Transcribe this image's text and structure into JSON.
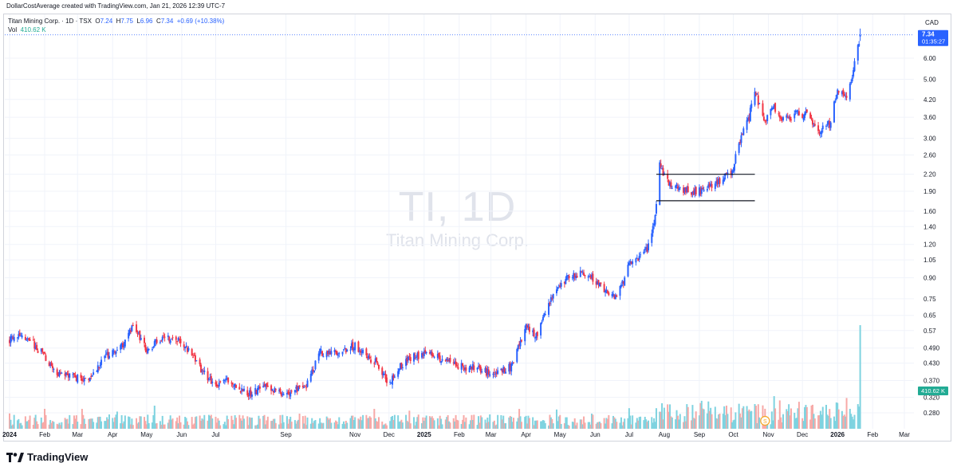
{
  "header": {
    "attribution": "DollarCostAverage created with TradingView.com, Jan 21, 2026 12:39 UTC-7"
  },
  "legend": {
    "symbol": "Titan Mining Corp. · 1D · TSX",
    "o_label": "O",
    "o_value": "7.24",
    "h_label": "H",
    "h_value": "7.75",
    "l_label": "L",
    "l_value": "6.96",
    "c_label": "C",
    "c_value": "7.34",
    "change": "+0.69 (+10.38%)",
    "vol_label": "Vol",
    "vol_value": "410.62 K"
  },
  "watermark": {
    "ticker": "TI, 1D",
    "name": "Titan Mining Corp."
  },
  "axis": {
    "currency": "CAD",
    "price_badge": "7.34",
    "countdown": "01:35:27",
    "volume_badge": "410.62 K",
    "event_marker": "S"
  },
  "branding": {
    "logo_text": "TradingView"
  },
  "colors": {
    "up": "#2962ff",
    "down": "#f23645",
    "vol_up": "#7fd3e0",
    "vol_down": "#f7a9a7",
    "grid": "#f0f3fa",
    "badge": "#2962ff",
    "vol_badge": "#22ab94",
    "event": "#f5a623"
  },
  "chart_data": {
    "type": "candlestick",
    "scale": "log",
    "ylim": [
      0.26,
      7.9
    ],
    "y_ticks": [
      "6.00",
      "5.00",
      "4.20",
      "3.60",
      "3.00",
      "2.60",
      "2.20",
      "1.90",
      "1.60",
      "1.40",
      "1.20",
      "1.05",
      "0.90",
      "0.75",
      "0.65",
      "0.57",
      "0.490",
      "0.430",
      "0.370",
      "0.320",
      "0.280"
    ],
    "x_ticks": [
      {
        "label": "2024",
        "bold": true,
        "date": "2024-01-01"
      },
      {
        "label": "Feb",
        "date": "2024-02-01"
      },
      {
        "label": "Mar",
        "date": "2024-03-01"
      },
      {
        "label": "Apr",
        "date": "2024-04-01"
      },
      {
        "label": "May",
        "date": "2024-05-01"
      },
      {
        "label": "Jun",
        "date": "2024-06-01"
      },
      {
        "label": "Jul",
        "date": "2024-07-01"
      },
      {
        "label": "Sep",
        "date": "2024-09-01"
      },
      {
        "label": "Nov",
        "date": "2024-11-01"
      },
      {
        "label": "Dec",
        "date": "2024-12-01"
      },
      {
        "label": "2025",
        "bold": true,
        "date": "2025-01-01"
      },
      {
        "label": "Feb",
        "date": "2025-02-01"
      },
      {
        "label": "Mar",
        "date": "2025-03-01"
      },
      {
        "label": "Apr",
        "date": "2025-04-01"
      },
      {
        "label": "May",
        "date": "2025-05-01"
      },
      {
        "label": "Jun",
        "date": "2025-06-01"
      },
      {
        "label": "Jul",
        "date": "2025-07-01"
      },
      {
        "label": "Aug",
        "date": "2025-08-01"
      },
      {
        "label": "Sep",
        "date": "2025-09-01"
      },
      {
        "label": "Oct",
        "date": "2025-10-01"
      },
      {
        "label": "Nov",
        "date": "2025-11-01"
      },
      {
        "label": "Dec",
        "date": "2025-12-01"
      },
      {
        "label": "2026",
        "bold": true,
        "date": "2026-01-01"
      },
      {
        "label": "Feb",
        "date": "2026-02-01"
      },
      {
        "label": "Mar",
        "date": "2026-03-01"
      }
    ],
    "close_path": [
      {
        "date": "2024-01-01",
        "close": 0.53
      },
      {
        "date": "2024-01-15",
        "close": 0.54
      },
      {
        "date": "2024-02-01",
        "close": 0.46
      },
      {
        "date": "2024-02-10",
        "close": 0.4
      },
      {
        "date": "2024-03-01",
        "close": 0.38
      },
      {
        "date": "2024-03-10",
        "close": 0.37
      },
      {
        "date": "2024-03-25",
        "close": 0.45
      },
      {
        "date": "2024-04-10",
        "close": 0.5
      },
      {
        "date": "2024-04-20",
        "close": 0.6
      },
      {
        "date": "2024-05-01",
        "close": 0.48
      },
      {
        "date": "2024-05-15",
        "close": 0.54
      },
      {
        "date": "2024-06-01",
        "close": 0.52
      },
      {
        "date": "2024-06-20",
        "close": 0.4
      },
      {
        "date": "2024-07-01",
        "close": 0.35
      },
      {
        "date": "2024-07-10",
        "close": 0.37
      },
      {
        "date": "2024-08-01",
        "close": 0.33
      },
      {
        "date": "2024-08-15",
        "close": 0.35
      },
      {
        "date": "2024-09-01",
        "close": 0.33
      },
      {
        "date": "2024-09-20",
        "close": 0.36
      },
      {
        "date": "2024-10-01",
        "close": 0.47
      },
      {
        "date": "2024-10-15",
        "close": 0.47
      },
      {
        "date": "2024-11-01",
        "close": 0.5
      },
      {
        "date": "2024-11-20",
        "close": 0.43
      },
      {
        "date": "2024-12-01",
        "close": 0.36
      },
      {
        "date": "2024-12-15",
        "close": 0.44
      },
      {
        "date": "2025-01-01",
        "close": 0.47
      },
      {
        "date": "2025-01-15",
        "close": 0.45
      },
      {
        "date": "2025-02-01",
        "close": 0.42
      },
      {
        "date": "2025-02-20",
        "close": 0.41
      },
      {
        "date": "2025-03-01",
        "close": 0.39
      },
      {
        "date": "2025-03-20",
        "close": 0.42
      },
      {
        "date": "2025-04-01",
        "close": 0.6
      },
      {
        "date": "2025-04-10",
        "close": 0.55
      },
      {
        "date": "2025-04-25",
        "close": 0.78
      },
      {
        "date": "2025-05-10",
        "close": 0.92
      },
      {
        "date": "2025-05-25",
        "close": 0.95
      },
      {
        "date": "2025-06-10",
        "close": 0.8
      },
      {
        "date": "2025-06-20",
        "close": 0.75
      },
      {
        "date": "2025-07-01",
        "close": 1.0
      },
      {
        "date": "2025-07-10",
        "close": 1.08
      },
      {
        "date": "2025-07-20",
        "close": 1.2
      },
      {
        "date": "2025-07-25",
        "close": 1.7
      },
      {
        "date": "2025-07-28",
        "close": 2.4
      },
      {
        "date": "2025-08-05",
        "close": 2.0
      },
      {
        "date": "2025-08-25",
        "close": 1.9
      },
      {
        "date": "2025-09-05",
        "close": 1.9
      },
      {
        "date": "2025-09-20",
        "close": 2.1
      },
      {
        "date": "2025-10-01",
        "close": 2.3
      },
      {
        "date": "2025-10-05",
        "close": 2.8
      },
      {
        "date": "2025-10-15",
        "close": 3.6
      },
      {
        "date": "2025-10-20",
        "close": 4.6
      },
      {
        "date": "2025-10-28",
        "close": 3.4
      },
      {
        "date": "2025-11-05",
        "close": 4.0
      },
      {
        "date": "2025-11-15",
        "close": 3.5
      },
      {
        "date": "2025-11-25",
        "close": 3.7
      },
      {
        "date": "2025-12-05",
        "close": 3.7
      },
      {
        "date": "2025-12-15",
        "close": 3.2
      },
      {
        "date": "2025-12-25",
        "close": 3.4
      },
      {
        "date": "2026-01-01",
        "close": 4.5
      },
      {
        "date": "2026-01-10",
        "close": 4.2
      },
      {
        "date": "2026-01-15",
        "close": 5.5
      },
      {
        "date": "2026-01-21",
        "close": 7.34
      }
    ],
    "last": {
      "date": "2026-01-21",
      "open": 7.24,
      "high": 7.75,
      "low": 6.96,
      "close": 7.34,
      "volume": "410.62 K"
    },
    "range_box": {
      "upper": 2.2,
      "lower": 1.75,
      "start": "2025-07-25",
      "end": "2025-10-20"
    }
  }
}
